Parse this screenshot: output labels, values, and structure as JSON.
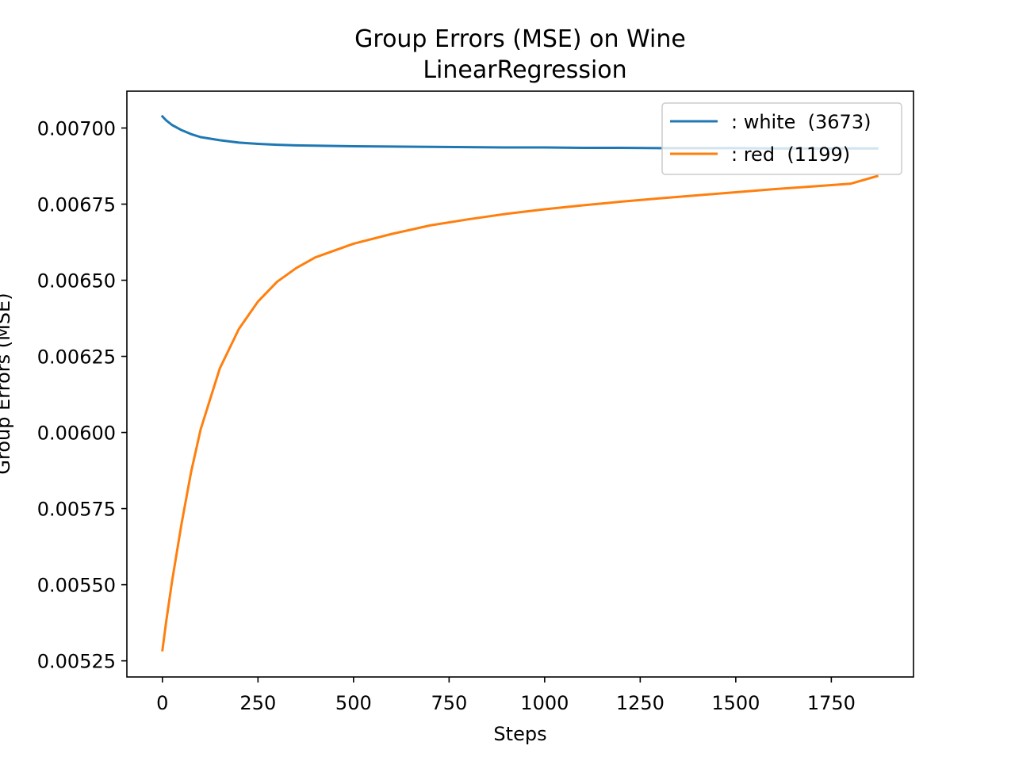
{
  "chart_data": {
    "type": "line",
    "title": "Group Errors (MSE) on Wine",
    "subtitle": "LinearRegression",
    "xlabel": "Steps",
    "ylabel": "Group Errors (MSE)",
    "xlim": [
      -93,
      1965
    ],
    "ylim": [
      0.005197,
      0.007121
    ],
    "x_ticks": [
      0,
      250,
      500,
      750,
      1000,
      1250,
      1500,
      1750
    ],
    "x_tick_labels": [
      "0",
      "250",
      "500",
      "750",
      "1000",
      "1250",
      "1500",
      "1750"
    ],
    "y_ticks": [
      0.00525,
      0.0055,
      0.00575,
      0.006,
      0.00625,
      0.0065,
      0.00675,
      0.007
    ],
    "y_tick_labels": [
      "0.00525",
      "0.00550",
      "0.00575",
      "0.00600",
      "0.00625",
      "0.00650",
      "0.00675",
      "0.00700"
    ],
    "grid": false,
    "legend_position": "upper right",
    "x": [
      0,
      10,
      25,
      50,
      75,
      100,
      150,
      200,
      250,
      300,
      350,
      400,
      500,
      600,
      700,
      800,
      900,
      1000,
      1100,
      1200,
      1300,
      1400,
      1500,
      1600,
      1700,
      1800,
      1870
    ],
    "series": [
      {
        "name": ": white  (3673)",
        "color": "#1f77b4",
        "values": [
          0.007038,
          0.007025,
          0.00701,
          0.006993,
          0.00698,
          0.00697,
          0.00696,
          0.006952,
          0.006948,
          0.006945,
          0.006943,
          0.006942,
          0.00694,
          0.006939,
          0.006938,
          0.006937,
          0.006936,
          0.006936,
          0.006935,
          0.006935,
          0.006934,
          0.006934,
          0.006934,
          0.006933,
          0.006933,
          0.006933,
          0.006933
        ]
      },
      {
        "name": ": red  (1199)",
        "color": "#ff7f0e",
        "values": [
          0.005285,
          0.00538,
          0.00551,
          0.0057,
          0.00587,
          0.00601,
          0.00621,
          0.00634,
          0.00643,
          0.006495,
          0.00654,
          0.006575,
          0.00662,
          0.006652,
          0.00668,
          0.0067,
          0.006718,
          0.006733,
          0.006746,
          0.006758,
          0.006769,
          0.006779,
          0.006789,
          0.006799,
          0.006808,
          0.006817,
          0.006842
        ]
      }
    ]
  }
}
